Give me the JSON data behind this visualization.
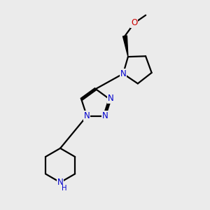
{
  "bg_color": "#ebebeb",
  "bond_color": "#000000",
  "N_color": "#0000cc",
  "O_color": "#cc0000",
  "line_width": 1.6,
  "font_size": 8.5,
  "fig_size": [
    3.0,
    3.0
  ],
  "dpi": 100,
  "xlim": [
    0,
    10
  ],
  "ylim": [
    0,
    10
  ]
}
